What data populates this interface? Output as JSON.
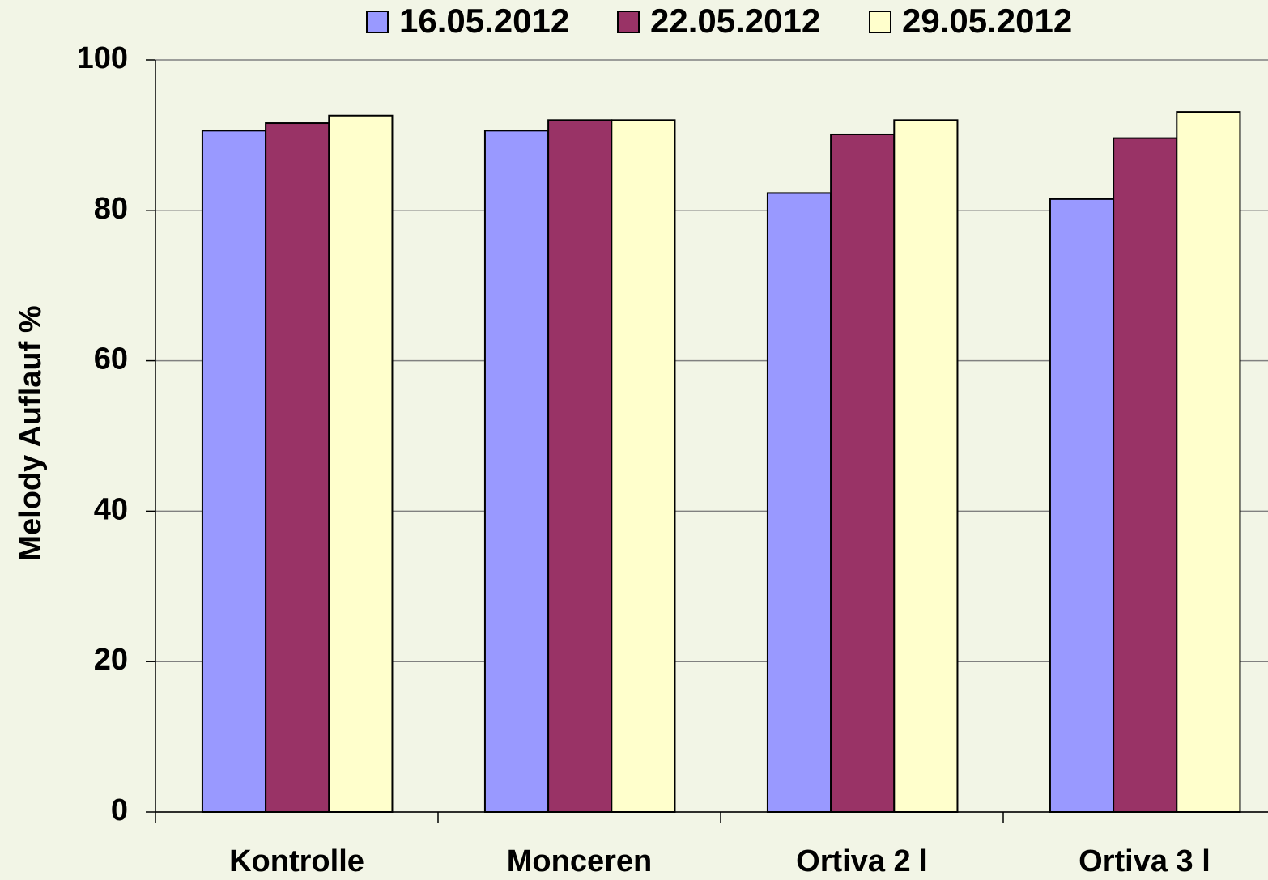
{
  "chart_data": {
    "type": "bar",
    "y_axis_label": "Melody Auflauf %",
    "categories": [
      "Kontrolle",
      "Monceren",
      "Ortiva 2 l",
      "Ortiva 3 l"
    ],
    "series": [
      {
        "name": "16.05.2012",
        "color": "#9999ff",
        "values": [
          90.6,
          90.6,
          82.3,
          81.5
        ]
      },
      {
        "name": "22.05.2012",
        "color": "#993366",
        "values": [
          91.6,
          92.0,
          90.1,
          89.6
        ]
      },
      {
        "name": "29.05.2012",
        "color": "#ffffcc",
        "values": [
          92.6,
          92.0,
          92.0,
          93.1
        ]
      }
    ],
    "ylim": [
      0,
      100
    ],
    "yticks": [
      0,
      20,
      40,
      60,
      80,
      100
    ],
    "grid": true,
    "legend": "top"
  }
}
